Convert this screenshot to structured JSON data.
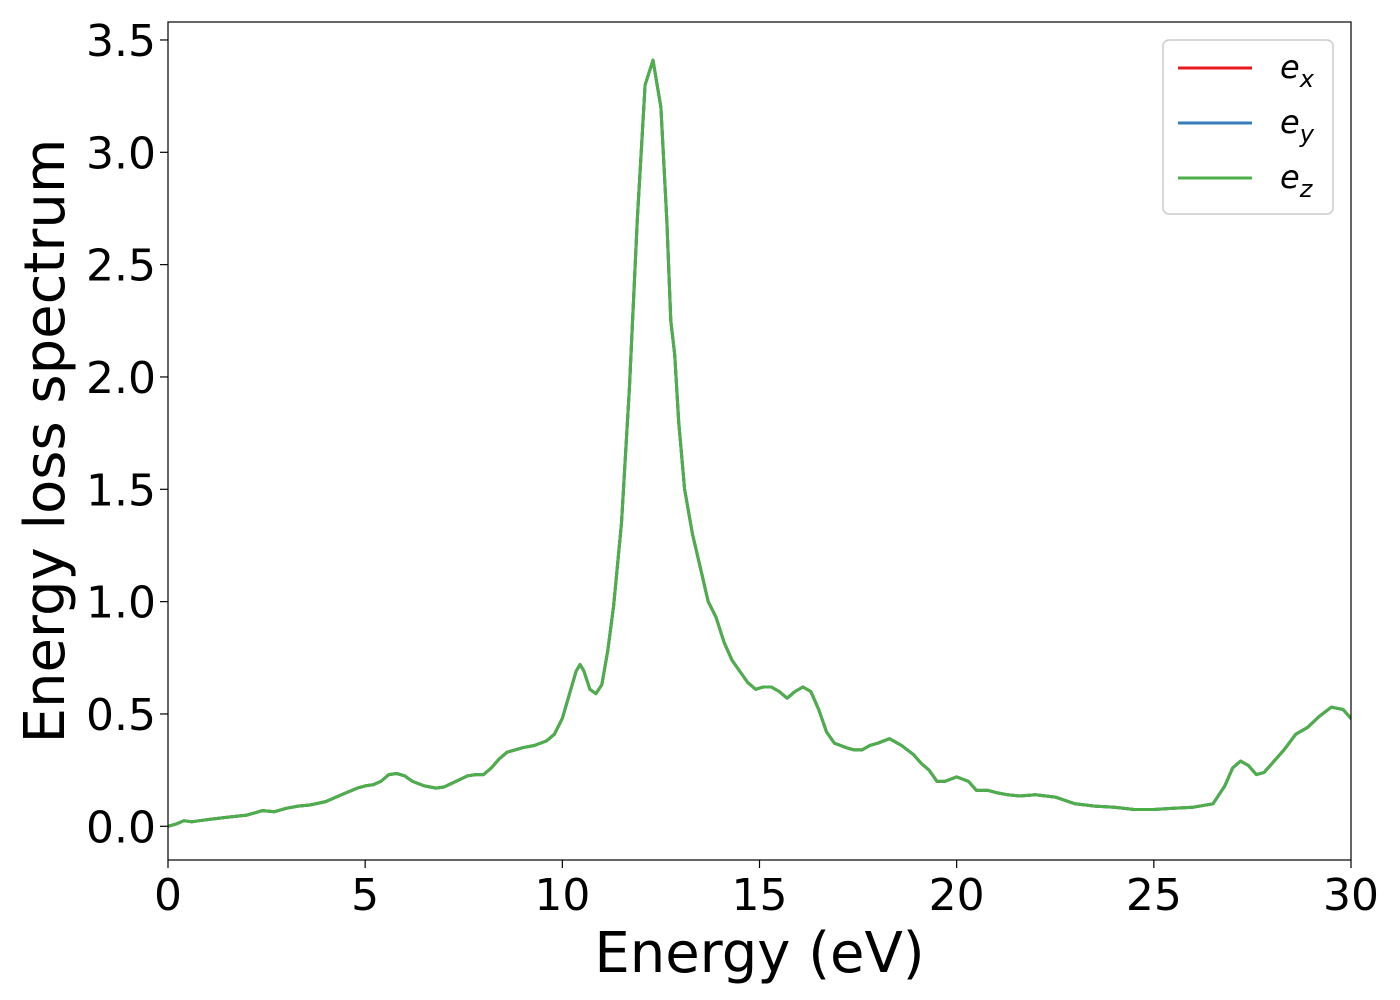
{
  "chart_data": {
    "type": "line",
    "title": "",
    "xlabel": "Energy (eV)",
    "ylabel": "Energy loss spectrum",
    "xlim": [
      0,
      30
    ],
    "ylim": [
      -0.15,
      3.58
    ],
    "xticks": [
      "0",
      "5",
      "10",
      "15",
      "20",
      "25",
      "30"
    ],
    "yticks": [
      "0.0",
      "0.5",
      "1.0",
      "1.5",
      "2.0",
      "2.5",
      "3.0",
      "3.5"
    ],
    "grid": false,
    "legend": {
      "position": "top-right",
      "entries": [
        {
          "base": "e",
          "sub": "x",
          "color": "#e41a1c"
        },
        {
          "base": "e",
          "sub": "y",
          "color": "#377eb8"
        },
        {
          "base": "e",
          "sub": "z",
          "color": "#4daf4a"
        }
      ]
    },
    "x": [
      0,
      0.2,
      0.4,
      0.6,
      0.8,
      1.0,
      1.5,
      2.0,
      2.4,
      2.7,
      3.0,
      3.3,
      3.6,
      4.0,
      4.4,
      4.8,
      5.0,
      5.2,
      5.4,
      5.6,
      5.8,
      6.0,
      6.2,
      6.5,
      6.8,
      7.0,
      7.3,
      7.6,
      7.8,
      8.0,
      8.2,
      8.4,
      8.6,
      8.8,
      9.0,
      9.3,
      9.6,
      9.8,
      10.0,
      10.2,
      10.35,
      10.45,
      10.55,
      10.7,
      10.85,
      11.0,
      11.15,
      11.3,
      11.5,
      11.7,
      11.9,
      12.1,
      12.3,
      12.5,
      12.65,
      12.75,
      12.85,
      12.95,
      13.1,
      13.3,
      13.5,
      13.7,
      13.9,
      14.1,
      14.3,
      14.5,
      14.7,
      14.9,
      15.1,
      15.3,
      15.5,
      15.7,
      15.9,
      16.1,
      16.3,
      16.5,
      16.7,
      16.9,
      17.05,
      17.2,
      17.4,
      17.6,
      17.8,
      18.0,
      18.3,
      18.6,
      18.9,
      19.1,
      19.3,
      19.5,
      19.7,
      20.0,
      20.3,
      20.5,
      20.8,
      21.0,
      21.3,
      21.6,
      22.0,
      22.5,
      23.0,
      23.5,
      24.0,
      24.5,
      25.0,
      25.5,
      26.0,
      26.5,
      26.8,
      27.0,
      27.2,
      27.4,
      27.6,
      27.8,
      28.0,
      28.3,
      28.6,
      28.9,
      29.2,
      29.5,
      29.8,
      30.0
    ],
    "series": [
      {
        "name": "e_x",
        "color": "#e41a1c",
        "values": [
          0.0,
          0.01,
          0.025,
          0.02,
          0.025,
          0.03,
          0.04,
          0.05,
          0.07,
          0.065,
          0.08,
          0.09,
          0.095,
          0.11,
          0.14,
          0.17,
          0.18,
          0.185,
          0.2,
          0.23,
          0.235,
          0.225,
          0.2,
          0.18,
          0.17,
          0.175,
          0.2,
          0.225,
          0.23,
          0.23,
          0.26,
          0.3,
          0.33,
          0.34,
          0.35,
          0.36,
          0.38,
          0.41,
          0.48,
          0.6,
          0.69,
          0.72,
          0.69,
          0.61,
          0.59,
          0.63,
          0.78,
          0.98,
          1.35,
          1.95,
          2.7,
          3.3,
          3.41,
          3.2,
          2.7,
          2.25,
          2.1,
          1.8,
          1.5,
          1.3,
          1.15,
          1.0,
          0.93,
          0.82,
          0.74,
          0.69,
          0.64,
          0.61,
          0.62,
          0.62,
          0.6,
          0.57,
          0.6,
          0.62,
          0.6,
          0.52,
          0.42,
          0.37,
          0.36,
          0.35,
          0.34,
          0.34,
          0.36,
          0.37,
          0.39,
          0.36,
          0.32,
          0.28,
          0.25,
          0.2,
          0.2,
          0.22,
          0.2,
          0.16,
          0.16,
          0.15,
          0.14,
          0.135,
          0.14,
          0.13,
          0.1,
          0.09,
          0.085,
          0.075,
          0.075,
          0.08,
          0.085,
          0.1,
          0.18,
          0.26,
          0.29,
          0.27,
          0.23,
          0.24,
          0.28,
          0.34,
          0.41,
          0.44,
          0.49,
          0.53,
          0.52,
          0.48
        ]
      },
      {
        "name": "e_y",
        "color": "#377eb8",
        "values": [
          0.0,
          0.01,
          0.025,
          0.02,
          0.025,
          0.03,
          0.04,
          0.05,
          0.07,
          0.065,
          0.08,
          0.09,
          0.095,
          0.11,
          0.14,
          0.17,
          0.18,
          0.185,
          0.2,
          0.23,
          0.235,
          0.225,
          0.2,
          0.18,
          0.17,
          0.175,
          0.2,
          0.225,
          0.23,
          0.23,
          0.26,
          0.3,
          0.33,
          0.34,
          0.35,
          0.36,
          0.38,
          0.41,
          0.48,
          0.6,
          0.69,
          0.72,
          0.69,
          0.61,
          0.59,
          0.63,
          0.78,
          0.98,
          1.35,
          1.95,
          2.7,
          3.3,
          3.41,
          3.2,
          2.7,
          2.25,
          2.1,
          1.8,
          1.5,
          1.3,
          1.15,
          1.0,
          0.93,
          0.82,
          0.74,
          0.69,
          0.64,
          0.61,
          0.62,
          0.62,
          0.6,
          0.57,
          0.6,
          0.62,
          0.6,
          0.52,
          0.42,
          0.37,
          0.36,
          0.35,
          0.34,
          0.34,
          0.36,
          0.37,
          0.39,
          0.36,
          0.32,
          0.28,
          0.25,
          0.2,
          0.2,
          0.22,
          0.2,
          0.16,
          0.16,
          0.15,
          0.14,
          0.135,
          0.14,
          0.13,
          0.1,
          0.09,
          0.085,
          0.075,
          0.075,
          0.08,
          0.085,
          0.1,
          0.18,
          0.26,
          0.29,
          0.27,
          0.23,
          0.24,
          0.28,
          0.34,
          0.41,
          0.44,
          0.49,
          0.53,
          0.52,
          0.48
        ]
      },
      {
        "name": "e_z",
        "color": "#4daf4a",
        "values": [
          0.0,
          0.01,
          0.025,
          0.02,
          0.025,
          0.03,
          0.04,
          0.05,
          0.07,
          0.065,
          0.08,
          0.09,
          0.095,
          0.11,
          0.14,
          0.17,
          0.18,
          0.185,
          0.2,
          0.23,
          0.235,
          0.225,
          0.2,
          0.18,
          0.17,
          0.175,
          0.2,
          0.225,
          0.23,
          0.23,
          0.26,
          0.3,
          0.33,
          0.34,
          0.35,
          0.36,
          0.38,
          0.41,
          0.48,
          0.6,
          0.69,
          0.72,
          0.69,
          0.61,
          0.59,
          0.63,
          0.78,
          0.98,
          1.35,
          1.95,
          2.7,
          3.3,
          3.41,
          3.2,
          2.7,
          2.25,
          2.1,
          1.8,
          1.5,
          1.3,
          1.15,
          1.0,
          0.93,
          0.82,
          0.74,
          0.69,
          0.64,
          0.61,
          0.62,
          0.62,
          0.6,
          0.57,
          0.6,
          0.62,
          0.6,
          0.52,
          0.42,
          0.37,
          0.36,
          0.35,
          0.34,
          0.34,
          0.36,
          0.37,
          0.39,
          0.36,
          0.32,
          0.28,
          0.25,
          0.2,
          0.2,
          0.22,
          0.2,
          0.16,
          0.16,
          0.15,
          0.14,
          0.135,
          0.14,
          0.13,
          0.1,
          0.09,
          0.085,
          0.075,
          0.075,
          0.08,
          0.085,
          0.1,
          0.18,
          0.26,
          0.29,
          0.27,
          0.23,
          0.24,
          0.28,
          0.34,
          0.41,
          0.44,
          0.49,
          0.53,
          0.52,
          0.48
        ]
      }
    ]
  }
}
